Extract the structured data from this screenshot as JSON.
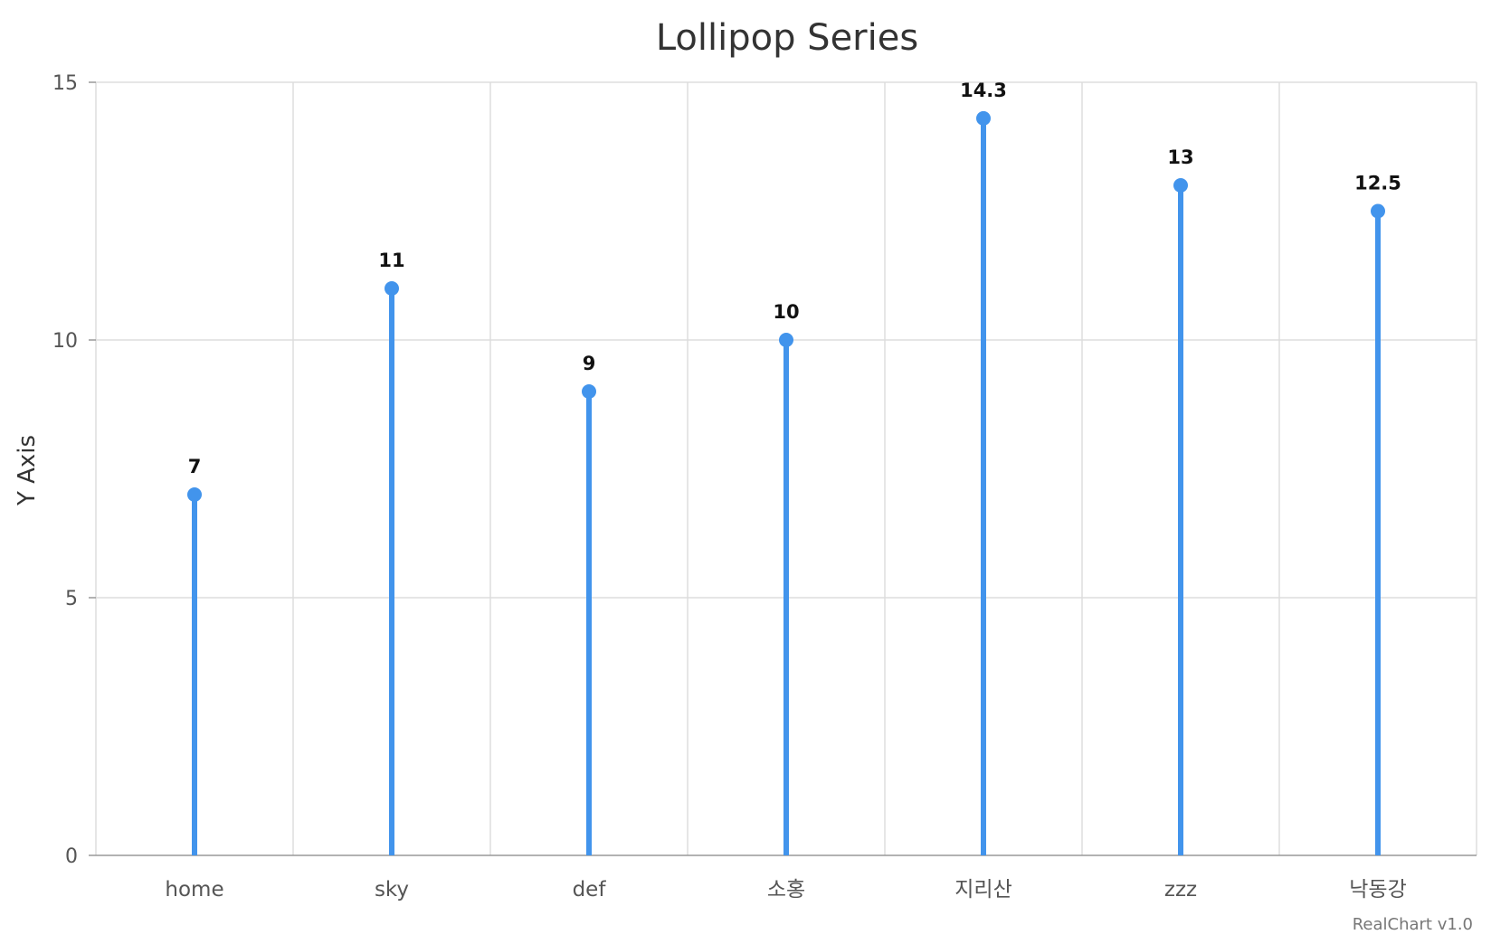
{
  "chart_data": {
    "type": "lollipop",
    "title": "Lollipop Series",
    "xlabel": "",
    "ylabel": "Y Axis",
    "categories": [
      "home",
      "sky",
      "def",
      "소홍",
      "지리산",
      "zzz",
      "낙동강"
    ],
    "values": [
      7,
      11,
      9,
      10,
      14.3,
      13,
      12.5
    ],
    "data_labels": [
      "7",
      "11",
      "9",
      "10",
      "14.3",
      "13",
      "12.5"
    ],
    "ylim": [
      0,
      15
    ],
    "y_ticks": [
      0,
      5,
      10,
      15
    ],
    "y_tick_labels": [
      "0",
      "5",
      "10",
      "15"
    ],
    "grid": true,
    "legend": "none",
    "color": "#4294ec"
  },
  "credit": "RealChart v1.0"
}
